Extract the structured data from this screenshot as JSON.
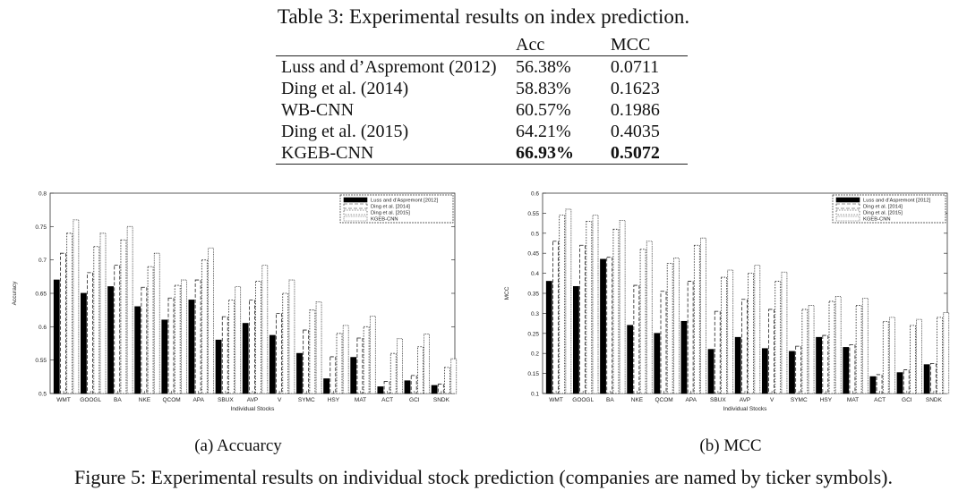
{
  "table": {
    "caption": "Table 3: Experimental results on index prediction.",
    "headers": [
      "",
      "Acc",
      "MCC"
    ],
    "rows": [
      {
        "method": "Luss and d’Aspremont (2012)",
        "acc": "56.38%",
        "mcc": "0.0711",
        "bold": false
      },
      {
        "method": "Ding et al. (2014)",
        "acc": "58.83%",
        "mcc": "0.1623",
        "bold": false
      },
      {
        "method": "WB-CNN",
        "acc": "60.57%",
        "mcc": "0.1986",
        "bold": false
      },
      {
        "method": "Ding et al. (2015)",
        "acc": "64.21%",
        "mcc": "0.4035",
        "bold": false
      },
      {
        "method": "KGEB-CNN",
        "acc": "66.93%",
        "mcc": "0.5072",
        "bold": true
      }
    ]
  },
  "chart_data": [
    {
      "type": "bar",
      "id": "acc",
      "xlabel": "Individual Stocks",
      "ylabel": "Accuracy",
      "ylim": [
        0.5,
        0.8
      ],
      "yticks": [
        "0.5",
        "0.55",
        "0.6",
        "0.65",
        "0.7",
        "0.75",
        "0.8"
      ],
      "grid": false,
      "legend_position": "top-right",
      "categories": [
        "WMT",
        "GOOGL",
        "BA",
        "NKE",
        "QCOM",
        "APA",
        "SBUX",
        "AVP",
        "V",
        "SYMC",
        "HSY",
        "MAT",
        "ACT",
        "GCI",
        "SNDK"
      ],
      "series": [
        {
          "name": "Luss and d'Aspremont [2012]",
          "style": "solid",
          "values": [
            0.67,
            0.65,
            0.66,
            0.63,
            0.61,
            0.64,
            0.58,
            0.605,
            0.587,
            0.56,
            0.522,
            0.554,
            0.51,
            0.519,
            0.512
          ]
        },
        {
          "name": "Ding et al. [2014]",
          "style": "dashed",
          "values": [
            0.71,
            0.681,
            0.692,
            0.659,
            0.643,
            0.67,
            0.615,
            0.64,
            0.62,
            0.595,
            0.555,
            0.583,
            0.518,
            0.527,
            0.514
          ]
        },
        {
          "name": "Ding et al. [2015]",
          "style": "dotted",
          "values": [
            0.74,
            0.72,
            0.73,
            0.69,
            0.662,
            0.7,
            0.64,
            0.668,
            0.65,
            0.625,
            0.59,
            0.6,
            0.56,
            0.57,
            0.539
          ]
        },
        {
          "name": "KGEB-CNN",
          "style": "dense",
          "values": [
            0.76,
            0.74,
            0.75,
            0.71,
            0.67,
            0.718,
            0.66,
            0.692,
            0.67,
            0.637,
            0.602,
            0.616,
            0.582,
            0.589,
            0.552
          ]
        }
      ]
    },
    {
      "type": "bar",
      "id": "mcc",
      "xlabel": "Individual Stocks",
      "ylabel": "MCC",
      "ylim": [
        0.1,
        0.6
      ],
      "yticks": [
        "0.1",
        "0.15",
        "0.2",
        "0.25",
        "0.3",
        "0.35",
        "0.4",
        "0.45",
        "0.5",
        "0.55",
        "0.6"
      ],
      "grid": false,
      "legend_position": "top-right",
      "categories": [
        "WMT",
        "GOOGL",
        "BA",
        "NKE",
        "QCOM",
        "APA",
        "SBUX",
        "AVP",
        "V",
        "SYMC",
        "HSY",
        "MAT",
        "ACT",
        "GCI",
        "SNDK"
      ],
      "series": [
        {
          "name": "Luss and d'Aspremont [2012]",
          "style": "solid",
          "values": [
            0.38,
            0.367,
            0.435,
            0.27,
            0.25,
            0.28,
            0.21,
            0.24,
            0.212,
            0.205,
            0.24,
            0.215,
            0.142,
            0.152,
            0.172
          ]
        },
        {
          "name": "Ding et al. [2014]",
          "style": "dashed",
          "values": [
            0.48,
            0.47,
            0.44,
            0.37,
            0.355,
            0.38,
            0.305,
            0.335,
            0.31,
            0.218,
            0.245,
            0.222,
            0.147,
            0.159,
            0.175
          ]
        },
        {
          "name": "Ding et al. [2015]",
          "style": "dotted",
          "values": [
            0.545,
            0.53,
            0.51,
            0.46,
            0.425,
            0.47,
            0.39,
            0.4,
            0.38,
            0.31,
            0.33,
            0.32,
            0.28,
            0.27,
            0.29
          ]
        },
        {
          "name": "KGEB-CNN",
          "style": "dense",
          "values": [
            0.56,
            0.545,
            0.532,
            0.48,
            0.438,
            0.488,
            0.408,
            0.42,
            0.403,
            0.32,
            0.342,
            0.338,
            0.29,
            0.285,
            0.302
          ]
        }
      ]
    }
  ],
  "subcaptions": {
    "a": "(a) Accuarcy",
    "b": "(b) MCC"
  },
  "figure_caption": "Figure 5: Experimental results on individual stock prediction (companies are named by ticker symbols)."
}
